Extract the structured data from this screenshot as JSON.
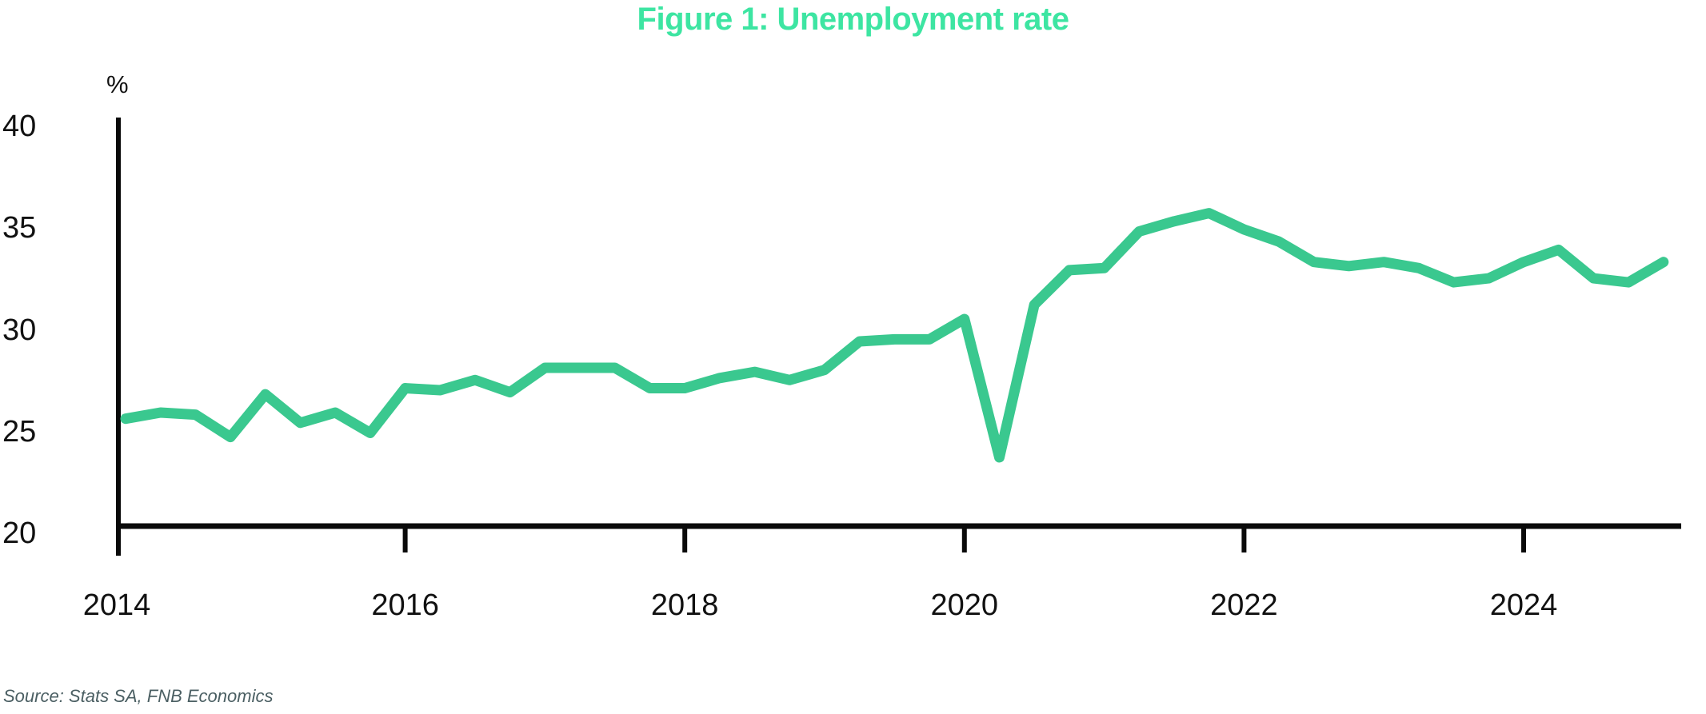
{
  "figure": {
    "title": "Figure 1: Unemployment rate",
    "source": "Source: Stats SA, FNB Economics"
  },
  "colors": {
    "title_green": "#3de5a2",
    "line_green": "#3ac88f",
    "axis_black": "#0a0a0a",
    "label_black": "#111111",
    "source_gray": "#4b5f63",
    "background": "#ffffff"
  },
  "chart_data": {
    "type": "line",
    "title": "Figure 1: Unemployment rate",
    "xlabel": "",
    "ylabel": "%",
    "ylim": [
      20,
      40
    ],
    "xlim": [
      2014,
      2025.25
    ],
    "grid": false,
    "legend": null,
    "yticks": [
      40,
      35,
      30,
      25,
      20
    ],
    "xticks": [
      2014,
      2016,
      2018,
      2020,
      2022,
      2024
    ],
    "frequency": "quarterly",
    "periods": [
      "2014Q1",
      "2014Q2",
      "2014Q3",
      "2014Q4",
      "2015Q1",
      "2015Q2",
      "2015Q3",
      "2015Q4",
      "2016Q1",
      "2016Q2",
      "2016Q3",
      "2016Q4",
      "2017Q1",
      "2017Q2",
      "2017Q3",
      "2017Q4",
      "2018Q1",
      "2018Q2",
      "2018Q3",
      "2018Q4",
      "2019Q1",
      "2019Q2",
      "2019Q3",
      "2019Q4",
      "2020Q1",
      "2020Q2",
      "2020Q3",
      "2020Q4",
      "2021Q1",
      "2021Q2",
      "2021Q3",
      "2021Q4",
      "2022Q1",
      "2022Q2",
      "2022Q3",
      "2022Q4",
      "2023Q1",
      "2023Q2",
      "2023Q3",
      "2023Q4",
      "2024Q1",
      "2024Q2",
      "2024Q3",
      "2024Q4",
      "2025Q1"
    ],
    "values": [
      25.2,
      25.5,
      25.4,
      24.3,
      26.4,
      25.0,
      25.5,
      24.5,
      26.7,
      26.6,
      27.1,
      26.5,
      27.7,
      27.7,
      27.7,
      26.7,
      26.7,
      27.2,
      27.5,
      27.1,
      27.6,
      29.0,
      29.1,
      29.1,
      30.1,
      23.3,
      30.8,
      32.5,
      32.6,
      34.4,
      34.9,
      35.3,
      34.5,
      33.9,
      32.9,
      32.7,
      32.9,
      32.6,
      31.9,
      32.1,
      32.9,
      33.5,
      32.1,
      31.9,
      32.9
    ],
    "source": "Source: Stats SA, FNB Economics"
  }
}
